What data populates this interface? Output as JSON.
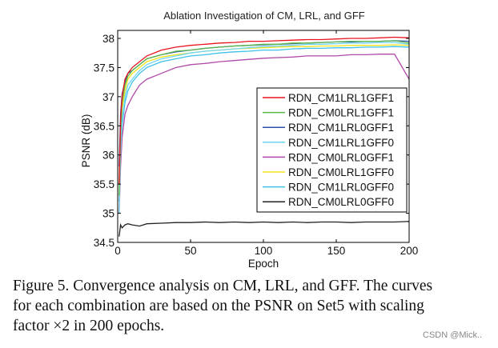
{
  "chart_data": {
    "type": "line",
    "title": "Ablation Investigation of CM, LRL, and GFF",
    "xlabel": "Epoch",
    "ylabel": "PSNR (dB)",
    "xlim": [
      0,
      200
    ],
    "ylim": [
      34.5,
      38.1
    ],
    "xticks": [
      "0",
      "50",
      "100",
      "150",
      "200"
    ],
    "yticks": [
      "34.5",
      "35",
      "35.5",
      "36",
      "36.5",
      "37",
      "37.5",
      "38"
    ],
    "grid": false,
    "legend_position": "center-right",
    "x": [
      1,
      2,
      3,
      5,
      7,
      10,
      15,
      20,
      30,
      40,
      50,
      60,
      70,
      80,
      90,
      100,
      110,
      120,
      130,
      140,
      150,
      160,
      170,
      180,
      190,
      200
    ],
    "series": [
      {
        "name": "RDN_CM1LRL1GFF1",
        "color": "#e8141e",
        "values": [
          35.5,
          36.6,
          37.0,
          37.3,
          37.4,
          37.5,
          37.6,
          37.7,
          37.8,
          37.85,
          37.88,
          37.9,
          37.92,
          37.93,
          37.95,
          37.95,
          37.96,
          37.97,
          37.98,
          37.98,
          37.99,
          38.0,
          38.0,
          38.01,
          38.02,
          38.01
        ]
      },
      {
        "name": "RDN_CM0LRL1GFF1",
        "color": "#5cb848",
        "values": [
          35.3,
          36.4,
          36.9,
          37.2,
          37.35,
          37.45,
          37.55,
          37.65,
          37.72,
          37.78,
          37.8,
          37.83,
          37.85,
          37.87,
          37.88,
          37.9,
          37.9,
          37.92,
          37.92,
          37.93,
          37.94,
          37.95,
          37.95,
          37.95,
          37.96,
          37.92
        ]
      },
      {
        "name": "RDN_CM1LRL0GFF1",
        "color": "#2f4fa8",
        "values": [
          35.8,
          36.7,
          37.05,
          37.25,
          37.4,
          37.45,
          37.55,
          37.65,
          37.72,
          37.77,
          37.8,
          37.83,
          37.85,
          37.87,
          37.88,
          37.89,
          37.9,
          37.91,
          37.92,
          37.93,
          37.94,
          37.94,
          37.95,
          37.95,
          37.96,
          37.95
        ]
      },
      {
        "name": "RDN_CM1LRL1GFF0",
        "color": "#6fd4ee",
        "values": [
          35.0,
          36.0,
          36.6,
          37.0,
          37.2,
          37.3,
          37.45,
          37.55,
          37.65,
          37.7,
          37.75,
          37.78,
          37.8,
          37.82,
          37.84,
          37.86,
          37.87,
          37.88,
          37.9,
          37.9,
          37.91,
          37.92,
          37.92,
          37.93,
          37.93,
          37.9
        ]
      },
      {
        "name": "RDN_CM0LRL0GFF1",
        "color": "#b04aa8",
        "values": [
          35.0,
          35.8,
          36.3,
          36.7,
          36.85,
          37.0,
          37.2,
          37.3,
          37.4,
          37.5,
          37.55,
          37.57,
          37.6,
          37.62,
          37.64,
          37.66,
          37.67,
          37.68,
          37.7,
          37.7,
          37.7,
          37.72,
          37.72,
          37.73,
          37.73,
          37.3
        ]
      },
      {
        "name": "RDN_CM0LRL1GFF0",
        "color": "#f2e31a",
        "values": [
          35.5,
          36.3,
          36.8,
          37.1,
          37.3,
          37.4,
          37.5,
          37.6,
          37.68,
          37.72,
          37.75,
          37.78,
          37.8,
          37.82,
          37.83,
          37.84,
          37.85,
          37.86,
          37.86,
          37.87,
          37.87,
          37.88,
          37.88,
          37.88,
          37.89,
          37.88
        ]
      },
      {
        "name": "RDN_CM1LRL0GFF0",
        "color": "#3ec0e8",
        "values": [
          35.2,
          36.0,
          36.5,
          36.9,
          37.1,
          37.25,
          37.4,
          37.5,
          37.6,
          37.65,
          37.7,
          37.72,
          37.75,
          37.77,
          37.78,
          37.8,
          37.8,
          37.82,
          37.83,
          37.83,
          37.84,
          37.84,
          37.85,
          37.85,
          37.86,
          37.85
        ]
      },
      {
        "name": "RDN_CM0LRL0GFF0",
        "color": "#222222",
        "values": [
          34.6,
          34.8,
          34.75,
          34.8,
          34.82,
          34.8,
          34.78,
          34.82,
          34.83,
          34.84,
          34.84,
          34.85,
          34.84,
          34.85,
          34.84,
          34.85,
          34.84,
          34.85,
          34.84,
          34.85,
          34.85,
          34.84,
          34.85,
          34.85,
          34.85,
          34.86
        ]
      }
    ]
  },
  "caption": {
    "lines": [
      "Figure 5. Convergence analysis on CM, LRL, and GFF. The curves",
      "for each combination are based on the PSNR on Set5 with scaling",
      "factor ×2 in 200 epochs."
    ]
  },
  "watermark": "CSDN @Mick.."
}
